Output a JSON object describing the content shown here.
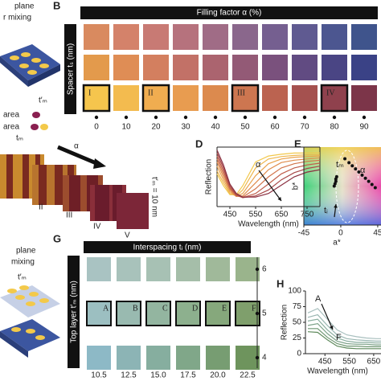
{
  "panel_labels": {
    "b": "B",
    "d": "D",
    "e": "E",
    "g": "G",
    "h": "H"
  },
  "panel_a": {
    "line1": "plane",
    "line2": "r mixing",
    "thickness": "t′ₘ",
    "area1": "area",
    "area2": "area",
    "bottom": "tₘ"
  },
  "panel_b": {
    "header": "Filling factor α (%)",
    "ylabel": "Spacer tₛ (nm)",
    "columns": [
      0,
      10,
      20,
      30,
      40,
      50,
      60,
      70,
      80,
      90
    ],
    "rows": [
      [
        "#d98a5f",
        "#d4826a",
        "#c87a74",
        "#b6727d",
        "#a06c86",
        "#8a678c",
        "#755f90",
        "#5f5a91",
        "#4c5690",
        "#3f548c"
      ],
      [
        "#e39a4c",
        "#df8d55",
        "#d37f5f",
        "#c27167",
        "#ab646f",
        "#935a76",
        "#7a517d",
        "#614b82",
        "#4a4584",
        "#3a4286"
      ],
      [
        "#f5c54d",
        "#f3bb4f",
        "#f0ad50",
        "#e89c50",
        "#dc8a4e",
        "#cd7650",
        "#bb6350",
        "#a5514f",
        "#8f414d",
        "#7c3549"
      ]
    ],
    "markers": [
      "I",
      null,
      "II",
      null,
      null,
      "III",
      null,
      null,
      "IV",
      null
    ]
  },
  "panel_c": {
    "arrow": "α",
    "labels": [
      "II",
      "III",
      "IV",
      "V"
    ],
    "thickness": "t′ₘ = 10 nm"
  },
  "panel_f": {
    "line1": "plane",
    "line2": "mixing",
    "thickness": "t′ₘ"
  },
  "panel_g": {
    "header": "Interspacing tᵢ (nm)",
    "ylabel": "Top layer t′ₘ (nm)",
    "columns": [
      "10.5",
      "12.5",
      "15.0",
      "17.5",
      "20.0",
      "22.5"
    ],
    "row_labels": [
      6,
      5,
      4
    ],
    "rows": [
      [
        "#a9c3c2",
        "#a8c2bb",
        "#a7c1b4",
        "#a5bea9",
        "#a0b99a",
        "#9ab48c"
      ],
      [
        "#9cbfc1",
        "#99bab0",
        "#93b5a0",
        "#8db08e",
        "#86a87c",
        "#7f9f6c"
      ],
      [
        "#8db9c6",
        "#8cb4b5",
        "#86ae9f",
        "#80a789",
        "#779d72",
        "#6e945d"
      ]
    ],
    "markers": [
      "A",
      "B",
      "C",
      "D",
      "E",
      "F"
    ]
  },
  "chart_data": [
    {
      "type": "line",
      "xlabel": "Wavelength (nm)",
      "ylabel": "Reflection",
      "xlim": [
        400,
        800
      ],
      "xticks": [
        450,
        550,
        650,
        750
      ],
      "ylim": [
        0,
        1
      ],
      "x": [
        400,
        425,
        450,
        475,
        500,
        550,
        600,
        650,
        700,
        750,
        800
      ],
      "annotations": [
        "α"
      ],
      "series": [
        {
          "color": "#f2c84b",
          "values": [
            0.55,
            0.35,
            0.2,
            0.2,
            0.35,
            0.75,
            0.85,
            0.88,
            0.9,
            0.9,
            0.9
          ]
        },
        {
          "color": "#eeb64c",
          "values": [
            0.6,
            0.4,
            0.22,
            0.18,
            0.28,
            0.65,
            0.8,
            0.84,
            0.86,
            0.87,
            0.87
          ]
        },
        {
          "color": "#e9a24c",
          "values": [
            0.68,
            0.45,
            0.25,
            0.17,
            0.22,
            0.52,
            0.72,
            0.8,
            0.83,
            0.84,
            0.85
          ]
        },
        {
          "color": "#e08c4c",
          "values": [
            0.75,
            0.5,
            0.28,
            0.17,
            0.18,
            0.4,
            0.62,
            0.74,
            0.78,
            0.8,
            0.82
          ]
        },
        {
          "color": "#d2754c",
          "values": [
            0.8,
            0.55,
            0.3,
            0.18,
            0.16,
            0.3,
            0.5,
            0.65,
            0.72,
            0.76,
            0.78
          ]
        },
        {
          "color": "#c05e4b",
          "values": [
            0.85,
            0.6,
            0.32,
            0.19,
            0.15,
            0.22,
            0.38,
            0.55,
            0.65,
            0.7,
            0.73
          ]
        },
        {
          "color": "#a84848",
          "values": [
            0.9,
            0.65,
            0.35,
            0.2,
            0.15,
            0.18,
            0.28,
            0.45,
            0.57,
            0.64,
            0.68
          ]
        },
        {
          "color": "#8a2f40",
          "values": [
            0.95,
            0.7,
            0.38,
            0.22,
            0.16,
            0.16,
            0.22,
            0.36,
            0.5,
            0.58,
            0.62
          ]
        }
      ]
    },
    {
      "type": "scatter",
      "xlabel": "a*",
      "ylabel": "b*",
      "xlim": [
        -45,
        49
      ],
      "xticks": [
        -45,
        0,
        45
      ],
      "ylim": [
        -40,
        60
      ],
      "annotations": [
        "tₘ",
        "tᵢ",
        "α"
      ],
      "series": [
        {
          "color": "#111111",
          "x": [
            5,
            10,
            14,
            18,
            22,
            26,
            30,
            34,
            38,
            42
          ],
          "values": [
            45,
            40,
            36,
            32,
            28,
            24,
            20,
            16,
            12,
            8
          ]
        },
        {
          "color": "#111111",
          "x": [
            -8,
            -7,
            -6,
            -6,
            -5
          ],
          "values": [
            10,
            13,
            16,
            19,
            22
          ]
        }
      ]
    },
    {
      "type": "line",
      "xlabel": "Wavelength (nm)",
      "ylabel": "Reflection",
      "xlim": [
        370,
        680
      ],
      "xticks": [
        450,
        550,
        650
      ],
      "ylim": [
        0,
        100
      ],
      "yticks": [
        0,
        25,
        50,
        75,
        100
      ],
      "x": [
        380,
        420,
        460,
        500,
        540,
        580,
        620,
        660,
        680
      ],
      "annotations": [
        "A",
        "F"
      ],
      "series": [
        {
          "color": "#a9c0bf",
          "values": [
            65,
            72,
            55,
            38,
            30,
            27,
            25,
            24,
            24
          ]
        },
        {
          "color": "#9ab7b2",
          "values": [
            58,
            62,
            45,
            30,
            24,
            22,
            21,
            20,
            20
          ]
        },
        {
          "color": "#8aae9f",
          "values": [
            52,
            55,
            38,
            25,
            20,
            18,
            18,
            17,
            17
          ]
        },
        {
          "color": "#7ea38a",
          "values": [
            45,
            48,
            32,
            20,
            16,
            15,
            15,
            14,
            14
          ]
        },
        {
          "color": "#6f9672",
          "values": [
            40,
            40,
            26,
            16,
            12,
            12,
            11,
            11,
            11
          ]
        },
        {
          "color": "#5f8a5c",
          "values": [
            35,
            34,
            22,
            12,
            9,
            8,
            8,
            8,
            8
          ]
        }
      ]
    }
  ]
}
